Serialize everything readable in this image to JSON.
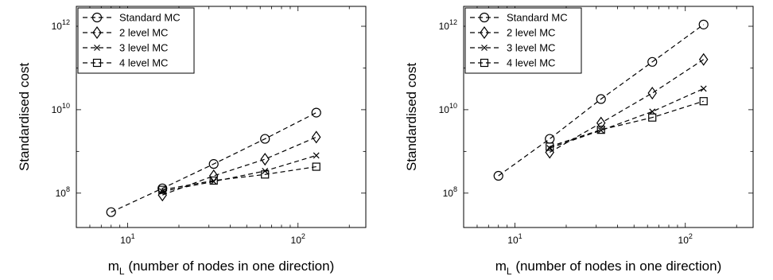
{
  "chart_data": [
    {
      "type": "line",
      "xscale": "log",
      "yscale": "log",
      "xlim": [
        5,
        250
      ],
      "ylim": [
        15000000.0,
        3000000000000.0
      ],
      "xticks": [
        10,
        100
      ],
      "xtick_labels": [
        {
          "base": "10",
          "exp": "1"
        },
        {
          "base": "10",
          "exp": "2"
        }
      ],
      "yticks": [
        100000000.0,
        10000000000.0,
        1000000000000.0
      ],
      "ytick_labels": [
        {
          "base": "10",
          "exp": "8"
        },
        {
          "base": "10",
          "exp": "10"
        },
        {
          "base": "10",
          "exp": "12"
        }
      ],
      "xlabel": {
        "main": "m",
        "sub": "L",
        "rest": " (number of nodes in one direction)"
      },
      "ylabel": "Standardised cost",
      "grid": false,
      "legend_position": "top-left",
      "series": [
        {
          "name": "Standard MC",
          "marker": "circle",
          "x": [
            8,
            16,
            32,
            64,
            128
          ],
          "y": [
            35000000.0,
            130000000.0,
            500000000.0,
            2000000000.0,
            8500000000.0
          ]
        },
        {
          "name": "2 level MC",
          "marker": "diamond",
          "x": [
            16,
            32,
            64,
            128
          ],
          "y": [
            90000000.0,
            260000000.0,
            650000000.0,
            2200000000.0
          ]
        },
        {
          "name": "3 level MC",
          "marker": "x",
          "x": [
            16,
            32,
            64,
            128
          ],
          "y": [
            110000000.0,
            190000000.0,
            340000000.0,
            800000000.0
          ]
        },
        {
          "name": "4 level MC",
          "marker": "square",
          "x": [
            16,
            32,
            64,
            128
          ],
          "y": [
            120000000.0,
            200000000.0,
            280000000.0,
            430000000.0
          ]
        }
      ]
    },
    {
      "type": "line",
      "xscale": "log",
      "yscale": "log",
      "xlim": [
        5,
        250
      ],
      "ylim": [
        15000000.0,
        3000000000000.0
      ],
      "xticks": [
        10,
        100
      ],
      "xtick_labels": [
        {
          "base": "10",
          "exp": "1"
        },
        {
          "base": "10",
          "exp": "2"
        }
      ],
      "yticks": [
        100000000.0,
        10000000000.0,
        1000000000000.0
      ],
      "ytick_labels": [
        {
          "base": "10",
          "exp": "8"
        },
        {
          "base": "10",
          "exp": "10"
        },
        {
          "base": "10",
          "exp": "12"
        }
      ],
      "xlabel": {
        "main": "m",
        "sub": "L",
        "rest": " (number of nodes in one direction)"
      },
      "ylabel": "Standardised cost",
      "grid": false,
      "legend_position": "top-left",
      "series": [
        {
          "name": "Standard MC",
          "marker": "circle",
          "x": [
            8,
            16,
            32,
            64,
            128
          ],
          "y": [
            260000000.0,
            2000000000.0,
            18000000000.0,
            140000000000.0,
            1100000000000.0
          ]
        },
        {
          "name": "2 level MC",
          "marker": "diamond",
          "x": [
            16,
            32,
            64,
            128
          ],
          "y": [
            950000000.0,
            4800000000.0,
            25000000000.0,
            160000000000.0
          ]
        },
        {
          "name": "3 level MC",
          "marker": "x",
          "x": [
            16,
            32,
            64,
            128
          ],
          "y": [
            1200000000.0,
            3200000000.0,
            9000000000.0,
            32000000000.0
          ]
        },
        {
          "name": "4 level MC",
          "marker": "square",
          "x": [
            16,
            32,
            64,
            128
          ],
          "y": [
            1300000000.0,
            3300000000.0,
            6500000000.0,
            16000000000.0
          ]
        }
      ]
    }
  ]
}
